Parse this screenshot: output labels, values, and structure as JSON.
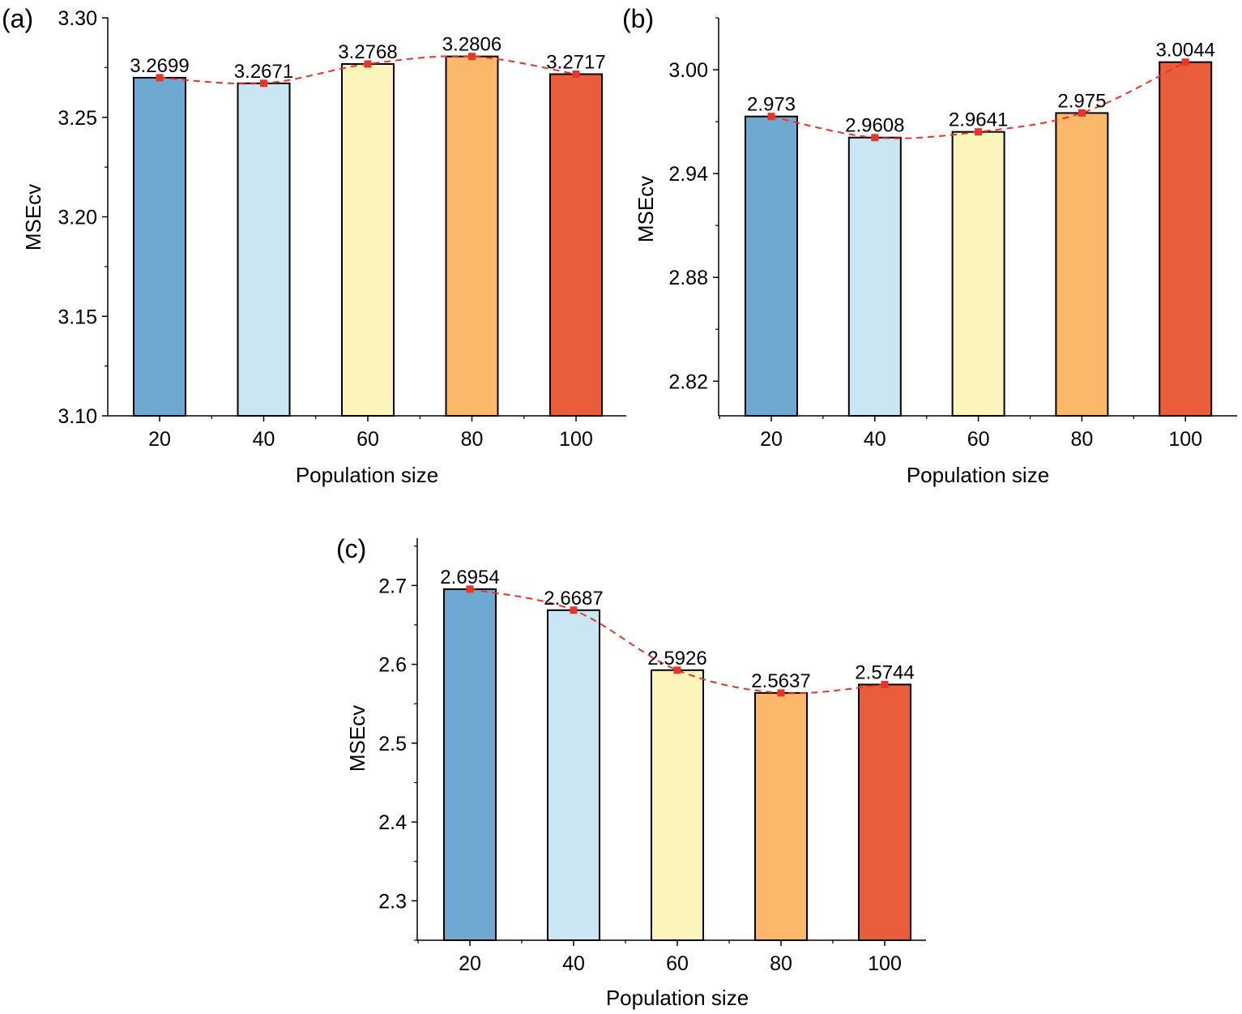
{
  "chart_data": [
    {
      "panel_label": "(a)",
      "type": "bar",
      "categories": [
        "20",
        "40",
        "60",
        "80",
        "100"
      ],
      "values": [
        3.2699,
        3.2671,
        3.2768,
        3.2806,
        3.2717
      ],
      "data_labels": [
        "3.2699",
        "3.2671",
        "3.2768",
        "3.2806",
        "3.2717"
      ],
      "xlabel": "Population size",
      "ylabel": "MSEcv",
      "ylim": [
        3.1,
        3.3
      ],
      "yticks": [
        3.1,
        3.15,
        3.2,
        3.25,
        3.3
      ],
      "ytick_labels": [
        "3.10",
        "3.15",
        "3.20",
        "3.25",
        "3.30"
      ],
      "trend_line": "dashed red spline through bar tops"
    },
    {
      "panel_label": "(b)",
      "type": "bar",
      "categories": [
        "20",
        "40",
        "60",
        "80",
        "100"
      ],
      "values": [
        2.973,
        2.9608,
        2.9641,
        2.975,
        3.0044
      ],
      "data_labels": [
        "2.973",
        "2.9608",
        "2.9641",
        "2.975",
        "3.0044"
      ],
      "xlabel": "Population size",
      "ylabel": "MSEcv",
      "ylim": [
        2.8,
        3.03
      ],
      "yticks": [
        2.82,
        2.88,
        2.94,
        3.0
      ],
      "ytick_labels": [
        "2.82",
        "2.88",
        "2.94",
        "3.00"
      ],
      "trend_line": "dashed red spline through bar tops"
    },
    {
      "panel_label": "(c)",
      "type": "bar",
      "categories": [
        "20",
        "40",
        "60",
        "80",
        "100"
      ],
      "values": [
        2.6954,
        2.6687,
        2.5926,
        2.5637,
        2.5744
      ],
      "data_labels": [
        "2.6954",
        "2.6687",
        "2.5926",
        "2.5637",
        "2.5744"
      ],
      "xlabel": "Population size",
      "ylabel": "MSEcv",
      "ylim": [
        2.25,
        2.76
      ],
      "yticks": [
        2.3,
        2.4,
        2.5,
        2.6,
        2.7
      ],
      "ytick_labels": [
        "2.3",
        "2.4",
        "2.5",
        "2.6",
        "2.7"
      ],
      "trend_line": "dashed red spline through bar tops"
    }
  ],
  "colors": {
    "bars": [
      "#6fa8d0",
      "#cae6f2",
      "#fbf5bc",
      "#fbb86b",
      "#ea5d3b"
    ],
    "trend": "#e8342a",
    "axis": "#000000"
  }
}
